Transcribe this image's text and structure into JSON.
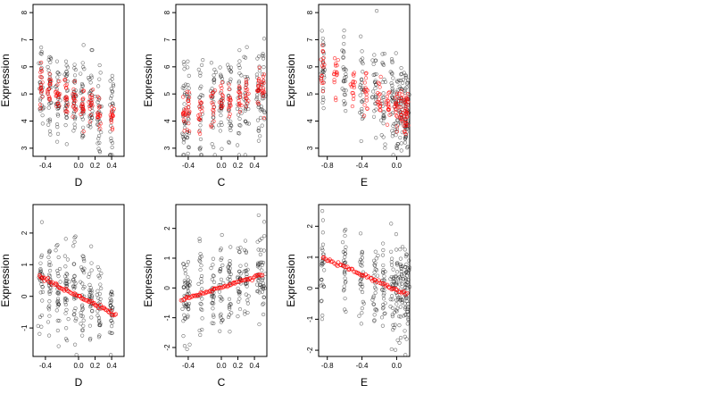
{
  "colors": {
    "observed": "#000000",
    "fitted": "#ff0000"
  },
  "chart_data": [
    {
      "type": "scatter",
      "xlabel": "D",
      "ylabel": "Expression",
      "xlim": [
        -0.55,
        0.55
      ],
      "ylim": [
        2.7,
        8.3
      ],
      "xticks": [
        "-0.4",
        "0.0",
        "0.2",
        "0.4"
      ],
      "yticks": [
        "3",
        "4",
        "5",
        "6",
        "7",
        "8"
      ],
      "observed": {
        "x_groups": [
          -0.45,
          -0.35,
          -0.25,
          -0.15,
          -0.05,
          0.05,
          0.15,
          0.25,
          0.4
        ],
        "y_mean_at_xmin": 5.3,
        "y_mean_at_xmax": 4.1,
        "spread": 0.9,
        "n": 260
      },
      "fitted": {
        "x_groups": [
          -0.45,
          -0.35,
          -0.25,
          -0.15,
          -0.05,
          0.05,
          0.15,
          0.25,
          0.4
        ],
        "y_at_xmin": 5.4,
        "y_at_xmax": 4.0,
        "spread": 0.35,
        "n": 140
      }
    },
    {
      "type": "scatter",
      "xlabel": "C",
      "ylabel": "Expression",
      "xlim": [
        -0.55,
        0.55
      ],
      "ylim": [
        2.7,
        8.3
      ],
      "xticks": [
        "-0.4",
        "0.0",
        "0.2",
        "0.4"
      ],
      "yticks": [
        "3",
        "4",
        "5",
        "6",
        "7",
        "8"
      ],
      "observed": {
        "x_groups": [
          -0.45,
          -0.4,
          -0.25,
          -0.1,
          0.0,
          0.1,
          0.22,
          0.3,
          0.45,
          0.5
        ],
        "y_mean_at_xmin": 4.2,
        "y_mean_at_xmax": 5.1,
        "spread": 0.9,
        "n": 260
      },
      "fitted": {
        "x_groups": [
          -0.45,
          -0.4,
          -0.25,
          -0.1,
          0.0,
          0.1,
          0.22,
          0.3,
          0.45,
          0.5
        ],
        "y_at_xmin": 4.1,
        "y_at_xmax": 5.2,
        "spread": 0.35,
        "n": 140
      }
    },
    {
      "type": "scatter",
      "xlabel": "E",
      "ylabel": "Expression",
      "xlim": [
        -0.9,
        0.15
      ],
      "ylim": [
        2.7,
        8.3
      ],
      "xticks": [
        "-0.8",
        "-0.4",
        "0.0"
      ],
      "yticks": [
        "3",
        "4",
        "5",
        "6",
        "7",
        "8"
      ],
      "observed": {
        "x_groups": [
          -0.85,
          -0.6,
          -0.4,
          -0.25,
          -0.15,
          -0.05,
          0.0,
          0.05,
          0.1,
          0.12
        ],
        "y_mean_at_xmin": 6.0,
        "y_mean_at_xmax": 4.4,
        "spread": 0.9,
        "n": 280
      },
      "fitted": {
        "x_groups": [
          -0.85,
          -0.7,
          -0.5,
          -0.35,
          -0.2,
          -0.1,
          0.0,
          0.05,
          0.1,
          0.12
        ],
        "y_at_xmin": 6.0,
        "y_at_xmax": 4.3,
        "spread": 0.4,
        "n": 160
      }
    },
    {
      "type": "scatter",
      "xlabel": "D",
      "ylabel": "Expression",
      "xlim": [
        -0.55,
        0.55
      ],
      "ylim": [
        -1.9,
        2.9
      ],
      "xticks": [
        "-0.4",
        "0.0",
        "0.2",
        "0.4"
      ],
      "yticks": [
        "-1",
        "0",
        "1",
        "2"
      ],
      "observed": {
        "x_groups": [
          -0.45,
          -0.35,
          -0.25,
          -0.15,
          -0.05,
          0.05,
          0.15,
          0.25,
          0.4
        ],
        "y_mean_at_xmin": 0.6,
        "y_mean_at_xmax": -0.5,
        "spread": 0.7,
        "n": 260
      },
      "fitted": {
        "x_start": -0.48,
        "x_end": 0.45,
        "y_at_xmin": 0.65,
        "y_at_xmax": -0.6,
        "n": 60
      }
    },
    {
      "type": "scatter",
      "xlabel": "C",
      "ylabel": "Expression",
      "xlim": [
        -0.55,
        0.55
      ],
      "ylim": [
        -2.3,
        2.8
      ],
      "xticks": [
        "-0.4",
        "0.0",
        "0.2",
        "0.4"
      ],
      "yticks": [
        "-2",
        "-1",
        "0",
        "1",
        "2"
      ],
      "observed": {
        "x_groups": [
          -0.45,
          -0.4,
          -0.25,
          -0.1,
          0.0,
          0.1,
          0.22,
          0.3,
          0.45,
          0.5
        ],
        "y_mean_at_xmin": -0.3,
        "y_mean_at_xmax": 0.5,
        "spread": 0.7,
        "n": 260
      },
      "fitted": {
        "x_start": -0.48,
        "x_end": 0.5,
        "y_at_xmin": -0.4,
        "y_at_xmax": 0.45,
        "n": 60
      }
    },
    {
      "type": "scatter",
      "xlabel": "E",
      "ylabel": "Expression",
      "xlim": [
        -0.9,
        0.15
      ],
      "ylim": [
        -2.2,
        2.7
      ],
      "xticks": [
        "-0.8",
        "-0.4",
        "0.0"
      ],
      "yticks": [
        "-2",
        "-1",
        "0",
        "1",
        "2"
      ],
      "observed": {
        "x_groups": [
          -0.85,
          -0.6,
          -0.4,
          -0.25,
          -0.15,
          -0.05,
          0.0,
          0.05,
          0.1,
          0.12
        ],
        "y_mean_at_xmin": 0.9,
        "y_mean_at_xmax": -0.2,
        "spread": 0.75,
        "n": 280
      },
      "fitted": {
        "x_start": -0.85,
        "x_end": 0.12,
        "y_at_xmin": 1.0,
        "y_at_xmax": -0.2,
        "n": 60
      }
    }
  ]
}
